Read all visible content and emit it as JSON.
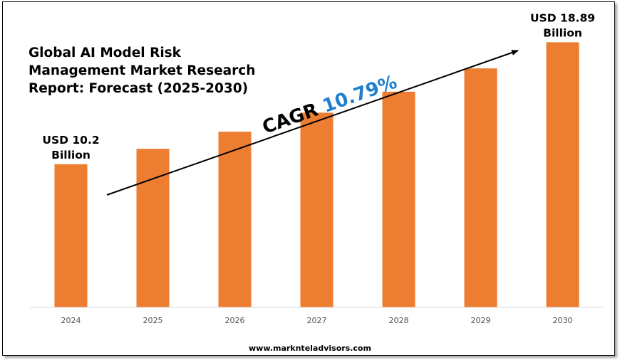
{
  "title_lines": [
    "Global AI Model Risk",
    "Management Market Research",
    "Report: Forecast (2025-2030)"
  ],
  "footer_url": "www.marknteladvisors.com",
  "cagr": {
    "prefix": "CAGR ",
    "value": "10.79%",
    "prefix_color": "#000000",
    "value_color": "#1f7fcf"
  },
  "colors": {
    "bar": "#ed7d31",
    "axis": "#d9d9d9",
    "arrow": "#000000"
  },
  "chart_data": {
    "type": "bar",
    "categories": [
      "2024",
      "2025",
      "2026",
      "2027",
      "2028",
      "2029",
      "2030"
    ],
    "values": [
      10.2,
      11.3,
      12.52,
      13.87,
      15.37,
      17.03,
      18.89
    ],
    "ylim": [
      0,
      19.5
    ],
    "unit": "USD Billion",
    "annotations": [
      {
        "category": "2024",
        "lines": [
          "USD 10.2",
          "Billion"
        ]
      },
      {
        "category": "2030",
        "lines": [
          "USD 18.89",
          "Billion"
        ]
      }
    ],
    "grid": false,
    "legend": "none"
  }
}
